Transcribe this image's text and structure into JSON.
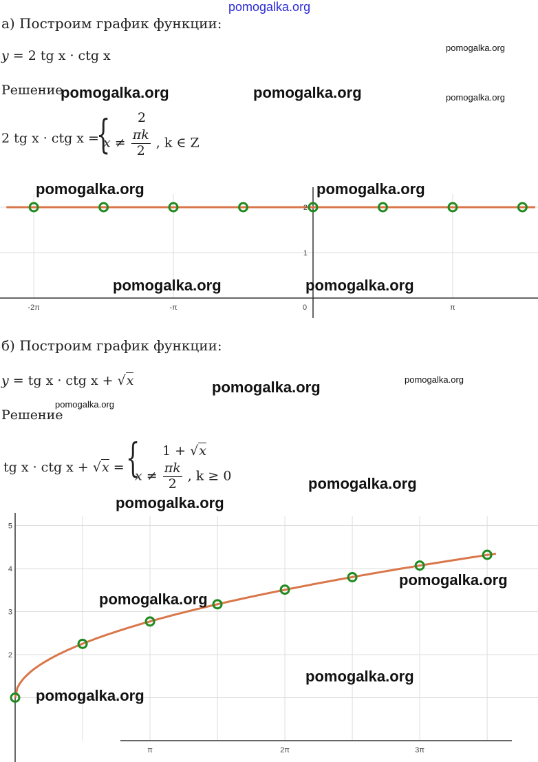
{
  "site_header": "pomogalka.org",
  "watermark": "pomogalka.org",
  "part_a": {
    "heading": "а) Построим график функции:",
    "function_lhs": "y",
    "function_rhs": "2 tg x · ctg x",
    "solution_label": "Решение",
    "system_lhs": "2 tg x · ctg x =",
    "system_top": "2",
    "system_cond_left": "x ≠",
    "system_num": "πk",
    "system_den": "2",
    "system_cond_right": ",  k ∈ Z"
  },
  "part_b": {
    "heading": "б) Построим график функции:",
    "function_lhs": "y",
    "function_rhs_main": "tg x · ctg x +",
    "function_rhs_sqrt": "x",
    "solution_label": "Решение",
    "system_lhs_main": "tg x · ctg x +",
    "system_lhs_sqrt": "x",
    "system_top_main": "1 +",
    "system_top_sqrt": "x",
    "system_cond_left": "x ≠",
    "system_num": "πk",
    "system_den": "2",
    "system_cond_right": ",  k ≥ 0"
  },
  "chart_data": [
    {
      "type": "line",
      "function": "y = 2, x ≠ πk/2",
      "x_tick_labels": [
        "-2π",
        "-π",
        "0",
        "π"
      ],
      "y_tick_labels": [
        "2",
        "1"
      ],
      "line": {
        "x_range": [
          -6.9,
          5.0
        ],
        "y": 2
      },
      "excluded_points": {
        "x": [
          -6.283,
          -4.712,
          -3.142,
          -1.571,
          0,
          1.571,
          3.142,
          4.712
        ],
        "y": [
          2,
          2,
          2,
          2,
          2,
          2,
          2,
          2
        ]
      },
      "colors": {
        "line": "#d9764a",
        "points": "#1f8a1f",
        "grid": "#dddddd",
        "axis": "#333333"
      }
    },
    {
      "type": "line",
      "function": "y = 1 + √x, x ≠ πk/2",
      "x_tick_labels": [
        "π",
        "2π",
        "3π"
      ],
      "y_tick_labels": [
        "5",
        "4",
        "3",
        "2"
      ],
      "curve": {
        "x_range": [
          0,
          11.2
        ]
      },
      "excluded_points": {
        "x": [
          0,
          1.571,
          3.142,
          4.712,
          6.283,
          7.854,
          9.425,
          10.996
        ],
        "y": [
          1,
          2.25,
          2.77,
          3.17,
          3.51,
          3.8,
          4.07,
          4.32
        ]
      },
      "colors": {
        "line": "#d9764a",
        "points": "#1f8a1f",
        "grid": "#dddddd",
        "axis": "#333333"
      }
    }
  ]
}
